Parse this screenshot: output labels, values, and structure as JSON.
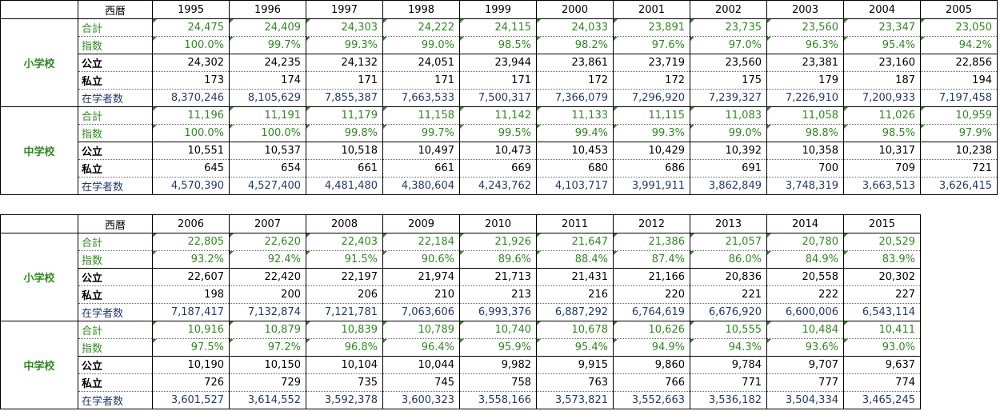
{
  "tables": [
    {
      "header_label": "西暦",
      "years": [
        "1995",
        "1996",
        "1997",
        "1998",
        "1999",
        "2000",
        "2001",
        "2002",
        "2003",
        "2004",
        "2005"
      ],
      "groups": [
        {
          "label": "小学校",
          "rows": [
            {
              "label": "合計",
              "values": [
                "24,475",
                "24,409",
                "24,303",
                "24,222",
                "24,115",
                "24,033",
                "23,891",
                "23,735",
                "23,560",
                "23,347",
                "23,050"
              ]
            },
            {
              "label": "指数",
              "values": [
                "100.0%",
                "99.7%",
                "99.3%",
                "99.0%",
                "98.5%",
                "98.2%",
                "97.6%",
                "97.0%",
                "96.3%",
                "95.4%",
                "94.2%"
              ]
            },
            {
              "label": "公立",
              "values": [
                "24,302",
                "24,235",
                "24,132",
                "24,051",
                "23,944",
                "23,861",
                "23,719",
                "23,560",
                "23,381",
                "23,160",
                "22,856"
              ]
            },
            {
              "label": "私立",
              "values": [
                "173",
                "174",
                "171",
                "171",
                "171",
                "172",
                "172",
                "175",
                "179",
                "187",
                "194"
              ]
            },
            {
              "label": "在学者数",
              "values": [
                "8,370,246",
                "8,105,629",
                "7,855,387",
                "7,663,533",
                "7,500,317",
                "7,366,079",
                "7,296,920",
                "7,239,327",
                "7,226,910",
                "7,200,933",
                "7,197,458"
              ]
            }
          ]
        },
        {
          "label": "中学校",
          "rows": [
            {
              "label": "合計",
              "values": [
                "11,196",
                "11,191",
                "11,179",
                "11,158",
                "11,142",
                "11,133",
                "11,115",
                "11,083",
                "11,058",
                "11,026",
                "10,959"
              ]
            },
            {
              "label": "指数",
              "values": [
                "100.0%",
                "100.0%",
                "99.8%",
                "99.7%",
                "99.5%",
                "99.4%",
                "99.3%",
                "99.0%",
                "98.8%",
                "98.5%",
                "97.9%"
              ]
            },
            {
              "label": "公立",
              "values": [
                "10,551",
                "10,537",
                "10,518",
                "10,497",
                "10,473",
                "10,453",
                "10,429",
                "10,392",
                "10,358",
                "10,317",
                "10,238"
              ]
            },
            {
              "label": "私立",
              "values": [
                "645",
                "654",
                "661",
                "661",
                "669",
                "680",
                "686",
                "691",
                "700",
                "709",
                "721"
              ]
            },
            {
              "label": "在学者数",
              "values": [
                "4,570,390",
                "4,527,400",
                "4,481,480",
                "4,380,604",
                "4,243,762",
                "4,103,717",
                "3,991,911",
                "3,862,849",
                "3,748,319",
                "3,663,513",
                "3,626,415"
              ]
            }
          ]
        }
      ]
    },
    {
      "header_label": "西暦",
      "years": [
        "2006",
        "2007",
        "2008",
        "2009",
        "2010",
        "2011",
        "2012",
        "2013",
        "2014",
        "2015"
      ],
      "groups": [
        {
          "label": "小学校",
          "rows": [
            {
              "label": "合計",
              "values": [
                "22,805",
                "22,620",
                "22,403",
                "22,184",
                "21,926",
                "21,647",
                "21,386",
                "21,057",
                "20,780",
                "20,529"
              ]
            },
            {
              "label": "指数",
              "values": [
                "93.2%",
                "92.4%",
                "91.5%",
                "90.6%",
                "89.6%",
                "88.4%",
                "87.4%",
                "86.0%",
                "84.9%",
                "83.9%"
              ]
            },
            {
              "label": "公立",
              "values": [
                "22,607",
                "22,420",
                "22,197",
                "21,974",
                "21,713",
                "21,431",
                "21,166",
                "20,836",
                "20,558",
                "20,302"
              ]
            },
            {
              "label": "私立",
              "values": [
                "198",
                "200",
                "206",
                "210",
                "213",
                "216",
                "220",
                "221",
                "222",
                "227"
              ]
            },
            {
              "label": "在学者数",
              "values": [
                "7,187,417",
                "7,132,874",
                "7,121,781",
                "7,063,606",
                "6,993,376",
                "6,887,292",
                "6,764,619",
                "6,676,920",
                "6,600,006",
                "6,543,114"
              ]
            }
          ]
        },
        {
          "label": "中学校",
          "rows": [
            {
              "label": "合計",
              "values": [
                "10,916",
                "10,879",
                "10,839",
                "10,789",
                "10,740",
                "10,678",
                "10,626",
                "10,555",
                "10,484",
                "10,411"
              ]
            },
            {
              "label": "指数",
              "values": [
                "97.5%",
                "97.2%",
                "96.8%",
                "96.4%",
                "95.9%",
                "95.4%",
                "94.9%",
                "94.3%",
                "93.6%",
                "93.0%"
              ]
            },
            {
              "label": "公立",
              "values": [
                "10,190",
                "10,150",
                "10,104",
                "10,044",
                "9,982",
                "9,915",
                "9,860",
                "9,784",
                "9,707",
                "9,637"
              ]
            },
            {
              "label": "私立",
              "values": [
                "726",
                "729",
                "735",
                "745",
                "758",
                "763",
                "766",
                "771",
                "777",
                "774"
              ]
            },
            {
              "label": "在学者数",
              "values": [
                "3,601,527",
                "3,614,552",
                "3,592,378",
                "3,600,323",
                "3,558,166",
                "3,573,821",
                "3,552,663",
                "3,536,182",
                "3,504,334",
                "3,465,245"
              ]
            }
          ]
        }
      ]
    }
  ]
}
